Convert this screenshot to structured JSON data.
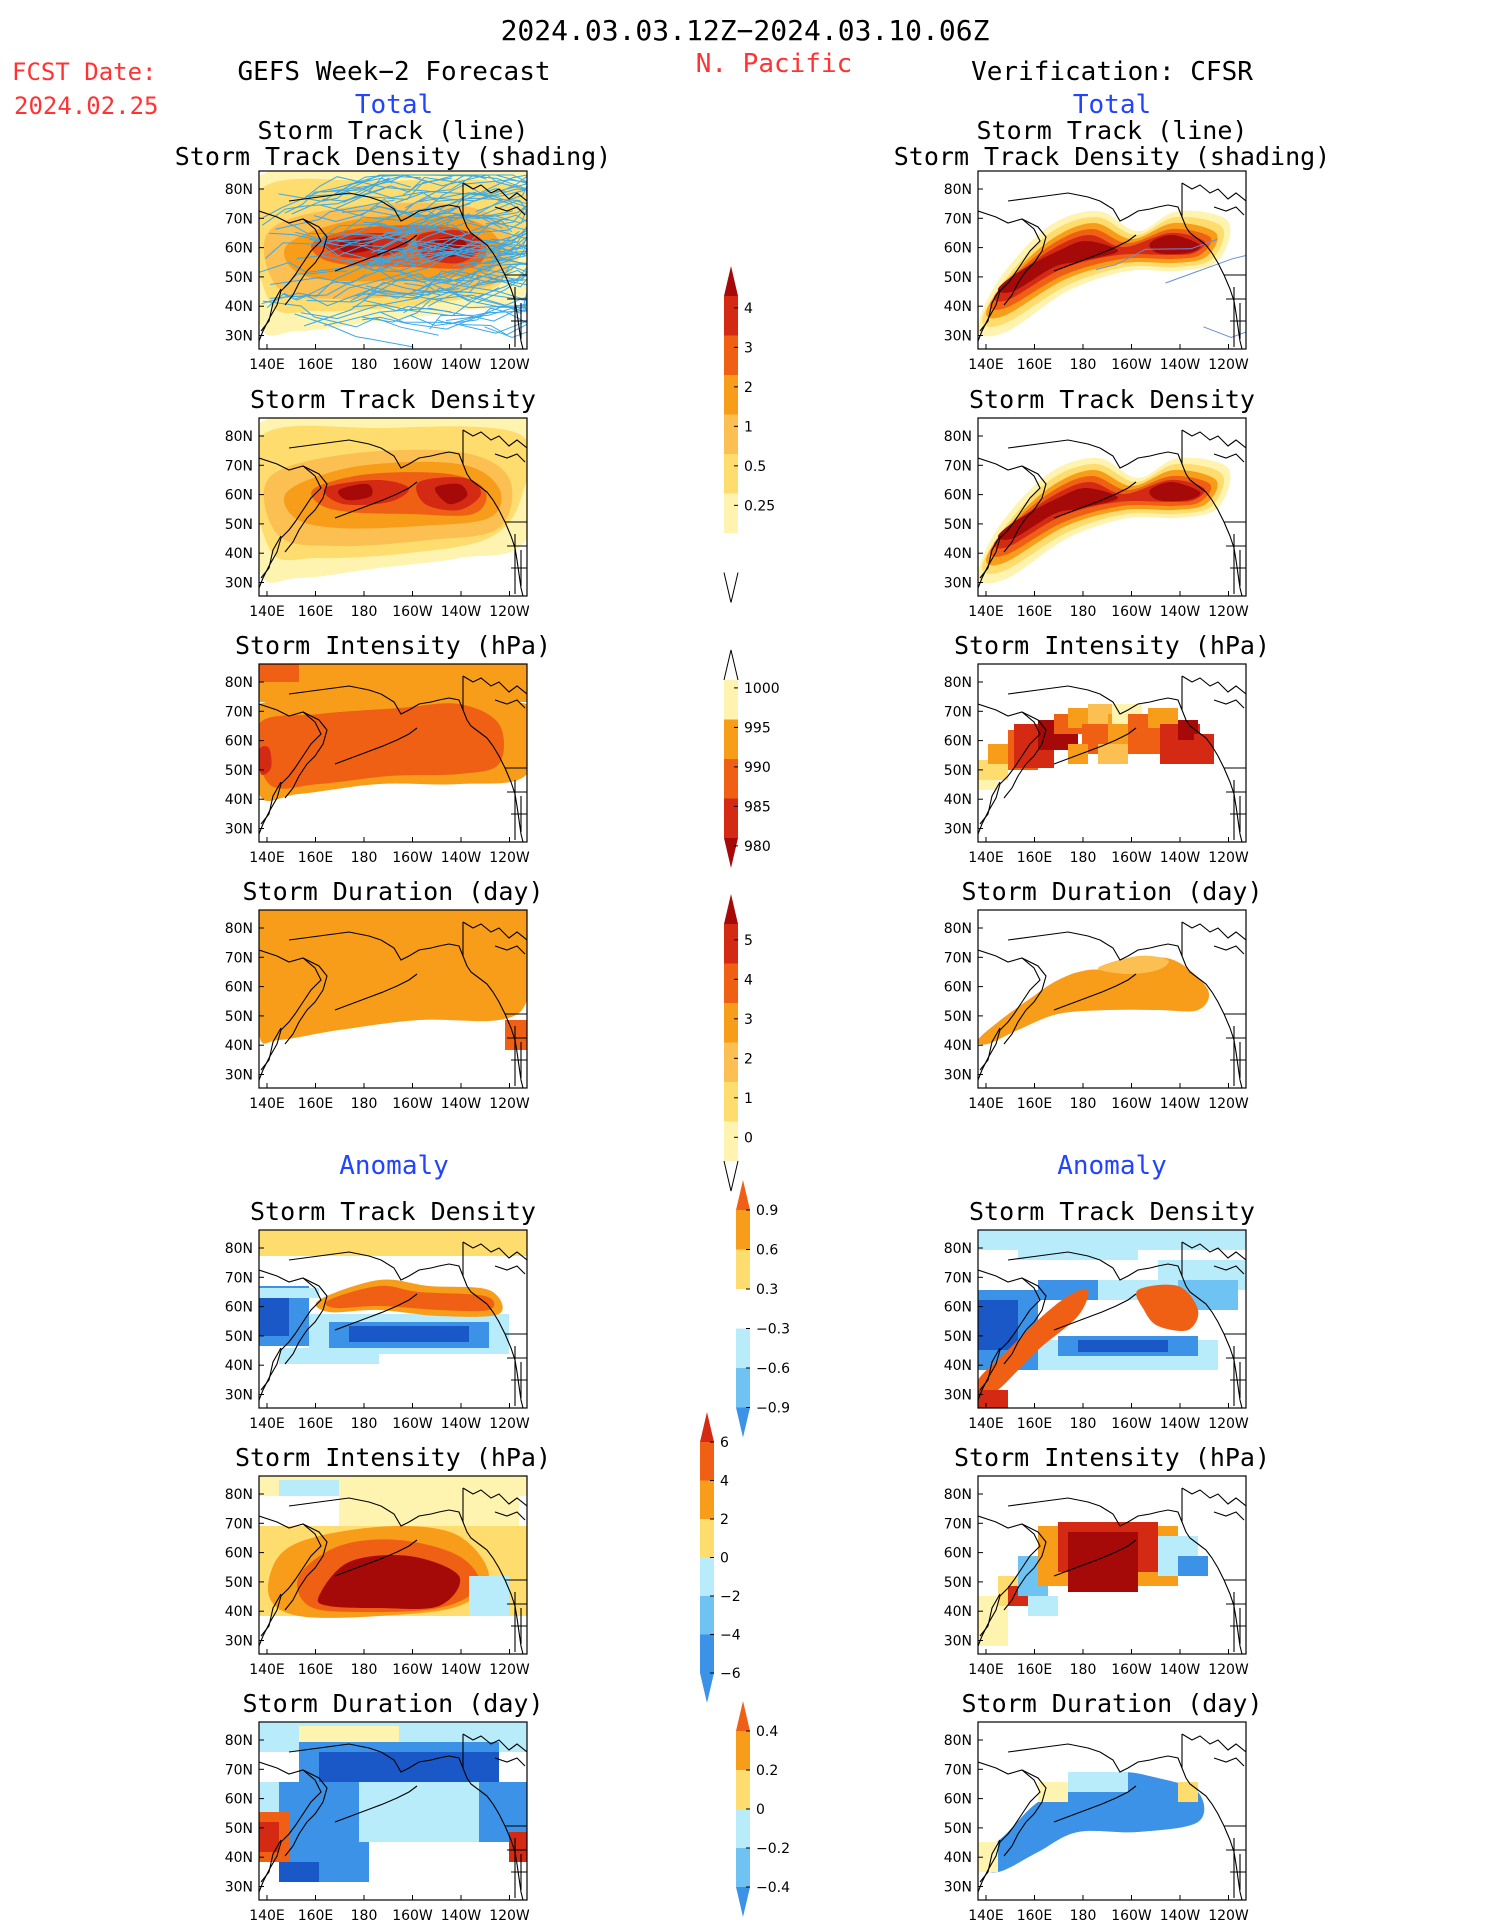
{
  "header": {
    "date_range": "2024.03.03.12Z−2024.03.10.06Z",
    "fcst_label": "FCST Date:",
    "fcst_date": "2024.02.25",
    "left_title": "GEFS Week−2 Forecast",
    "region": "N. Pacific",
    "right_title": "Verification: CFSR"
  },
  "sections": {
    "total": "Total",
    "anomaly": "Anomaly"
  },
  "axes": {
    "lat_ticks": [
      "80N",
      "70N",
      "60N",
      "50N",
      "40N",
      "30N"
    ],
    "lon_ticks": [
      "140E",
      "160E",
      "180",
      "160W",
      "140W",
      "120W"
    ]
  },
  "panel_titles": {
    "track_line": "Storm Track (line)",
    "track_density_shading": "Storm Track Density (shading)",
    "track_density": "Storm Track Density",
    "intensity": "Storm Intensity (hPa)",
    "duration": "Storm Duration (day)"
  },
  "colors": {
    "lightyellow": "#fff3b0",
    "yellow": "#ffdc6e",
    "lightorange": "#fcbf52",
    "orange": "#f89d1a",
    "darkorange": "#f06014",
    "red": "#d42a14",
    "darkred": "#a50a08",
    "lightblue": "#b8ecfa",
    "midblue": "#6ec3f2",
    "blue": "#3b92e6",
    "darkblue": "#1a58c8",
    "track_line": "#3aa9e8",
    "track_line_verif": "#6a8fd6",
    "title_blue": "#2244ff",
    "title_red": "#ff3333"
  },
  "chart_data": [
    {
      "type": "heatmap",
      "name": "Storm Track Density Total colorbar",
      "levels": [
        "4",
        "3",
        "2",
        "1",
        "0.5",
        "0.25"
      ]
    },
    {
      "type": "heatmap",
      "name": "Storm Intensity Total colorbar",
      "levels": [
        "1000",
        "995",
        "990",
        "985",
        "980"
      ]
    },
    {
      "type": "heatmap",
      "name": "Storm Duration Total colorbar",
      "levels": [
        "5",
        "4",
        "3",
        "2",
        "1",
        "0"
      ]
    },
    {
      "type": "heatmap",
      "name": "Storm Track Density Anomaly colorbar",
      "levels": [
        "0.9",
        "0.6",
        "0.3",
        "−0.3",
        "−0.6",
        "−0.9"
      ]
    },
    {
      "type": "heatmap",
      "name": "Storm Intensity Anomaly colorbar",
      "levels": [
        "6",
        "4",
        "2",
        "0",
        "−2",
        "−4",
        "−6"
      ]
    },
    {
      "type": "heatmap",
      "name": "Storm Duration Anomaly colorbar",
      "levels": [
        "0.4",
        "0.2",
        "0",
        "−0.2",
        "−0.4"
      ]
    }
  ]
}
